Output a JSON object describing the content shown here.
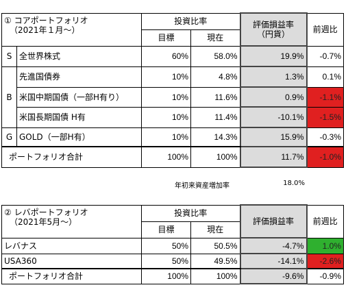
{
  "core": {
    "title_num": "①",
    "title": "コアポートフォリオ",
    "subtitle": "（2021年１月～）",
    "h_ratio": "投資比率",
    "h_target": "目標",
    "h_current": "現在",
    "h_pl": "評価損益率",
    "h_pl2": "（円貨）",
    "h_week": "前週比",
    "rows": [
      {
        "group": "S",
        "name": "全世界株式",
        "target": "60%",
        "current": "58.0%",
        "pl": "19.9%",
        "week": "-0.7%",
        "week_color": "none"
      },
      {
        "group": "B",
        "name": "先進国債券",
        "target": "10%",
        "current": "4.8%",
        "pl": "1.3%",
        "week": "0.1%",
        "week_color": "none"
      },
      {
        "group": "",
        "name": "米国中期国債（一部H有り）",
        "target": "10%",
        "current": "11.6%",
        "pl": "0.9%",
        "week": "-1.1%",
        "week_color": "red"
      },
      {
        "group": "",
        "name": "米国長期国債 H有",
        "target": "10%",
        "current": "11.4%",
        "pl": "-10.1%",
        "week": "-1.5%",
        "week_color": "red"
      },
      {
        "group": "G",
        "name": "GOLD（一部H有）",
        "target": "10%",
        "current": "14.3%",
        "pl": "15.9%",
        "week": "-0.3%",
        "week_color": "none"
      }
    ],
    "total": {
      "name": "ポートフォリオ合計",
      "target": "100%",
      "current": "100%",
      "pl": "11.7%",
      "week": "-1.0%",
      "week_color": "red"
    }
  },
  "note": {
    "label": "年初来資産増加率",
    "value": "18.0%"
  },
  "lev": {
    "title_num": "②",
    "title": "レバポートフォリオ",
    "subtitle": "（2021年5月～）",
    "h_ratio": "投資比率",
    "h_target": "目標",
    "h_current": "現在",
    "h_pl": "評価損益率",
    "h_week": "前週比",
    "rows": [
      {
        "name": "レバナス",
        "target": "50%",
        "current": "50.5%",
        "pl": "-4.7%",
        "week": "1.0%",
        "week_color": "green"
      },
      {
        "name": "USA360",
        "target": "50%",
        "current": "49.5%",
        "pl": "-14.1%",
        "week": "-2.6%",
        "week_color": "red"
      }
    ],
    "total": {
      "name": "ポートフォリオ合計",
      "target": "100%",
      "current": "100%",
      "pl": "-9.6%",
      "week": "-0.9%",
      "week_color": "none"
    }
  }
}
